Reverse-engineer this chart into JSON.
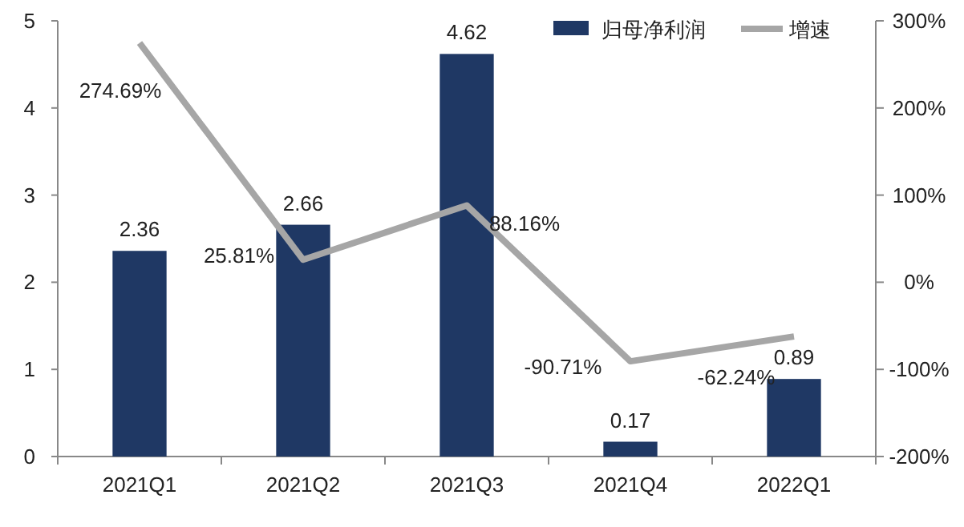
{
  "chart_data": {
    "type": "bar",
    "categories": [
      "2021Q1",
      "2021Q2",
      "2021Q3",
      "2021Q4",
      "2022Q1"
    ],
    "series": [
      {
        "name": "归母净利润",
        "color": "#1f3864",
        "values": [
          2.36,
          2.66,
          4.62,
          0.17,
          0.89
        ],
        "value_labels": [
          "2.36",
          "2.66",
          "4.62",
          "0.17",
          "0.89"
        ]
      },
      {
        "name": "增速",
        "type": "line",
        "axis": "y2",
        "color": "#a6a6a6",
        "values": [
          274.69,
          25.81,
          88.16,
          -90.71,
          -62.24
        ],
        "value_labels": [
          "274.69%",
          "25.81%",
          "88.16%",
          "-90.71%",
          "-62.24%"
        ]
      }
    ],
    "ylim": [
      0,
      5
    ],
    "yticks": [
      0,
      1,
      2,
      3,
      4,
      5
    ],
    "y2lim": [
      -200,
      300
    ],
    "y2ticks": [
      {
        "value": -200,
        "label": "-200%"
      },
      {
        "value": -100,
        "label": "-100%"
      },
      {
        "value": 0,
        "label": "0%"
      },
      {
        "value": 100,
        "label": "100%"
      },
      {
        "value": 200,
        "label": "200%"
      },
      {
        "value": 300,
        "label": "300%"
      }
    ],
    "legend": "top right",
    "grid": false,
    "marker": "none",
    "line_style": "solid"
  }
}
